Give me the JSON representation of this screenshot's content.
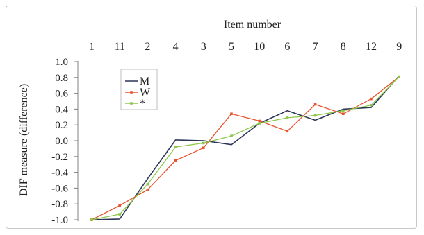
{
  "chart_data": {
    "type": "line",
    "title": "",
    "xlabel": "Item number",
    "ylabel": "DIF measure (difference)",
    "categories": [
      "1",
      "11",
      "2",
      "4",
      "3",
      "5",
      "10",
      "6",
      "7",
      "8",
      "12",
      "9"
    ],
    "ylim": [
      -1.0,
      1.0
    ],
    "yticks": [
      "1.0",
      "0.8",
      "0.6",
      "0.4",
      "0.2",
      "0.0",
      "-0.2",
      "-0.4",
      "-0.6",
      "-0.8",
      "-1.0"
    ],
    "x_axis_position": "top",
    "grid": false,
    "legend_position": "upper-left",
    "series": [
      {
        "name": "M",
        "color": "#2b3556",
        "marker": "none",
        "values": [
          -1.0,
          -0.99,
          -0.48,
          0.01,
          0.0,
          -0.05,
          0.22,
          0.38,
          0.26,
          0.4,
          0.42,
          0.82
        ]
      },
      {
        "name": "W",
        "color": "#e8542e",
        "marker": "square",
        "values": [
          -1.0,
          -0.82,
          -0.62,
          -0.25,
          -0.09,
          0.34,
          0.25,
          0.12,
          0.46,
          0.34,
          0.53,
          0.81
        ]
      },
      {
        "name": "*",
        "color": "#8ec64b",
        "marker": "square",
        "values": [
          -1.0,
          -0.93,
          -0.55,
          -0.08,
          -0.03,
          0.06,
          0.22,
          0.29,
          0.32,
          0.38,
          0.45,
          0.81
        ]
      }
    ]
  }
}
